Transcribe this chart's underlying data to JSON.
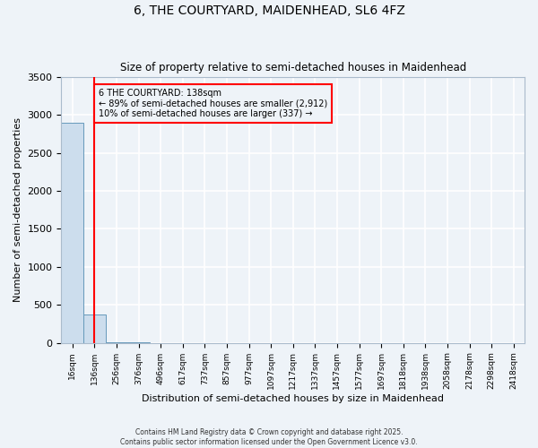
{
  "title_line1": "6, THE COURTYARD, MAIDENHEAD, SL6 4FZ",
  "title_line2": "Size of property relative to semi-detached houses in Maidenhead",
  "xlabel": "Distribution of semi-detached houses by size in Maidenhead",
  "ylabel": "Number of semi-detached properties",
  "bin_labels": [
    "16sqm",
    "136sqm",
    "256sqm",
    "376sqm",
    "496sqm",
    "617sqm",
    "737sqm",
    "857sqm",
    "977sqm",
    "1097sqm",
    "1217sqm",
    "1337sqm",
    "1457sqm",
    "1577sqm",
    "1697sqm",
    "1818sqm",
    "1938sqm",
    "2058sqm",
    "2178sqm",
    "2298sqm",
    "2418sqm"
  ],
  "bar_values": [
    2900,
    370,
    5,
    2,
    1,
    1,
    0,
    0,
    0,
    0,
    0,
    0,
    0,
    0,
    0,
    0,
    0,
    0,
    0,
    0,
    0
  ],
  "bar_color": "#ccdded",
  "bar_edgecolor": "#6699bb",
  "ylim": [
    0,
    3500
  ],
  "yticks": [
    0,
    500,
    1000,
    1500,
    2000,
    2500,
    3000,
    3500
  ],
  "property_line_x": 1.0,
  "property_line_color": "red",
  "annotation_text": "6 THE COURTYARD: 138sqm\n← 89% of semi-detached houses are smaller (2,912)\n10% of semi-detached houses are larger (337) →",
  "annotation_box_facecolor": "#eef3f8",
  "annotation_box_edgecolor": "red",
  "background_color": "#eef3f8",
  "grid_color": "white",
  "footer": "Contains HM Land Registry data © Crown copyright and database right 2025.\nContains public sector information licensed under the Open Government Licence v3.0."
}
